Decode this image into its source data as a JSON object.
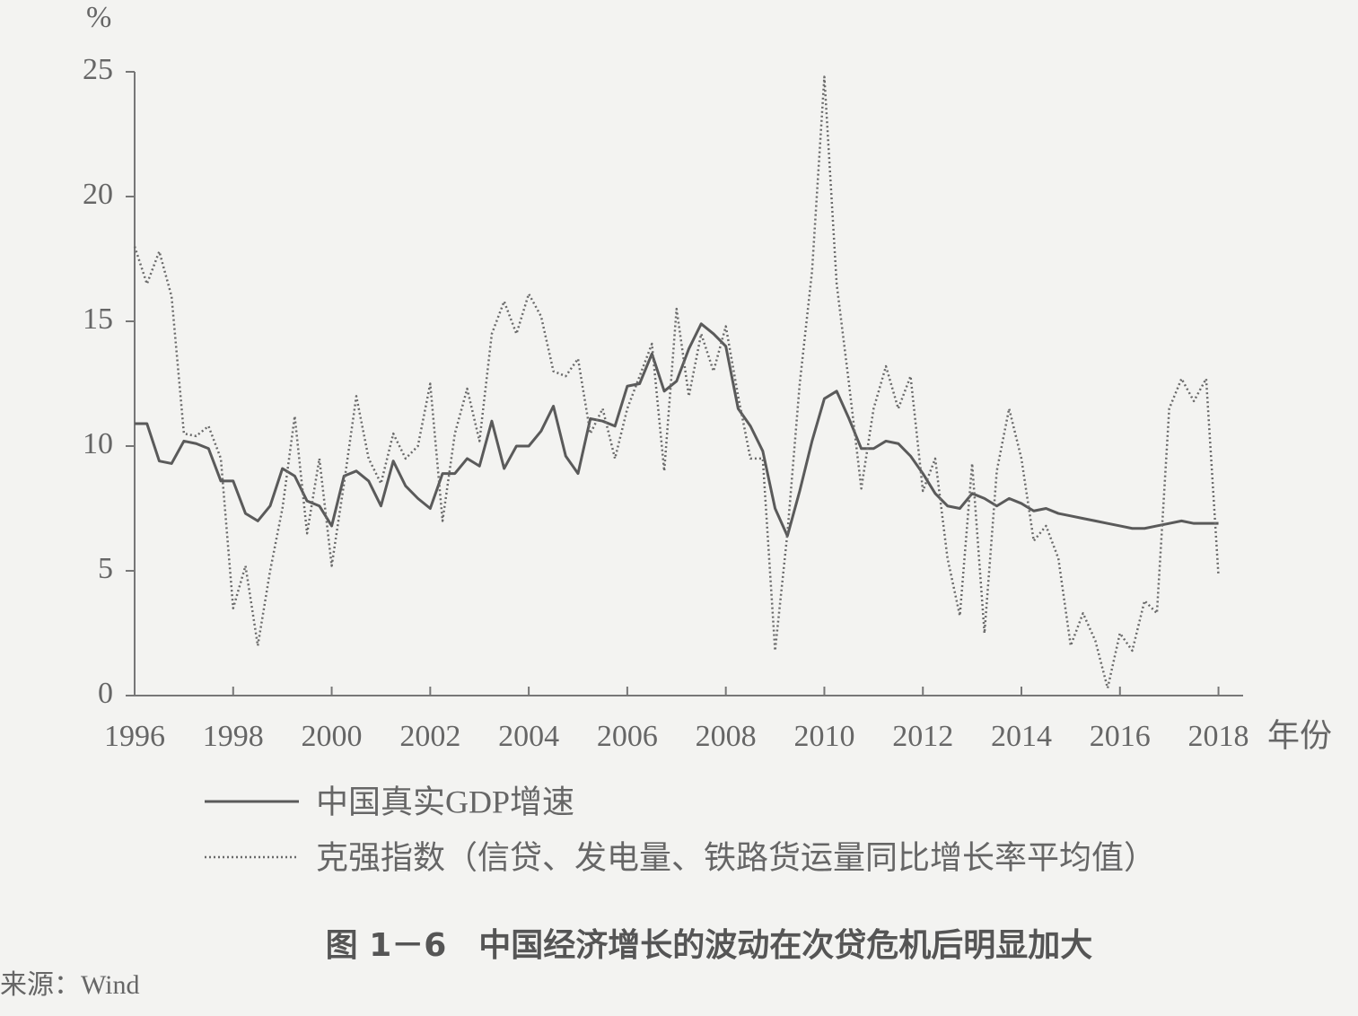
{
  "chart_data": {
    "type": "line",
    "y_unit": "%",
    "x_label": "年份",
    "caption": "图 1－6　中国经济增长的波动在次贷危机后明显加大",
    "source": "来源：Wind",
    "xlim": [
      1996,
      2018.5
    ],
    "ylim": [
      0,
      25
    ],
    "xticks": [
      1996,
      1998,
      2000,
      2002,
      2004,
      2006,
      2008,
      2010,
      2012,
      2014,
      2016,
      2018
    ],
    "yticks": [
      0,
      5,
      10,
      15,
      20,
      25
    ],
    "grid": false,
    "x": [
      1996,
      1996.25,
      1996.5,
      1996.75,
      1997,
      1997.25,
      1997.5,
      1997.75,
      1998,
      1998.25,
      1998.5,
      1998.75,
      1999,
      1999.25,
      1999.5,
      1999.75,
      2000,
      2000.25,
      2000.5,
      2000.75,
      2001,
      2001.25,
      2001.5,
      2001.75,
      2002,
      2002.25,
      2002.5,
      2002.75,
      2003,
      2003.25,
      2003.5,
      2003.75,
      2004,
      2004.25,
      2004.5,
      2004.75,
      2005,
      2005.25,
      2005.5,
      2005.75,
      2006,
      2006.25,
      2006.5,
      2006.75,
      2007,
      2007.25,
      2007.5,
      2007.75,
      2008,
      2008.25,
      2008.5,
      2008.75,
      2009,
      2009.25,
      2009.5,
      2009.75,
      2010,
      2010.25,
      2010.5,
      2010.75,
      2011,
      2011.25,
      2011.5,
      2011.75,
      2012,
      2012.25,
      2012.5,
      2012.75,
      2013,
      2013.25,
      2013.5,
      2013.75,
      2014,
      2014.25,
      2014.5,
      2014.75,
      2015,
      2015.25,
      2015.5,
      2015.75,
      2016,
      2016.25,
      2016.5,
      2016.75,
      2017,
      2017.25,
      2017.5,
      2017.75,
      2018
    ],
    "series": [
      {
        "name": "中国真实GDP增速",
        "color": "#5a5a5a",
        "style": "solid",
        "values": [
          10.9,
          10.9,
          9.4,
          9.3,
          10.2,
          10.1,
          9.9,
          8.6,
          8.6,
          7.3,
          7.0,
          7.6,
          9.1,
          8.8,
          7.8,
          7.6,
          6.8,
          8.8,
          9.0,
          8.6,
          7.6,
          9.4,
          8.4,
          7.9,
          7.5,
          8.9,
          8.9,
          9.5,
          9.2,
          11.0,
          9.1,
          10.0,
          10.0,
          10.6,
          11.6,
          9.6,
          8.9,
          11.1,
          11.0,
          10.8,
          12.4,
          12.5,
          13.7,
          12.2,
          12.6,
          13.9,
          14.9,
          14.5,
          14.0,
          11.5,
          10.8,
          9.8,
          7.5,
          6.4,
          8.2,
          10.2,
          11.9,
          12.2,
          11.1,
          9.9,
          9.9,
          10.2,
          10.1,
          9.6,
          8.9,
          8.1,
          7.6,
          7.5,
          8.1,
          7.9,
          7.6,
          7.9,
          7.7,
          7.4,
          7.5,
          7.3,
          7.2,
          7.1,
          7.0,
          6.9,
          6.8,
          6.7,
          6.7,
          6.8,
          6.9,
          7.0,
          6.9,
          6.9,
          6.9
        ]
      },
      {
        "name": "克强指数（信贷、发电量、铁路货运量同比增长率平均值）",
        "color": "#6a6a6a",
        "style": "dotted",
        "values": [
          18.0,
          16.5,
          17.8,
          16.0,
          10.5,
          10.4,
          10.8,
          9.5,
          3.5,
          5.2,
          2.0,
          5.0,
          7.5,
          11.2,
          6.5,
          9.5,
          5.2,
          8.5,
          12.0,
          9.5,
          8.5,
          10.5,
          9.5,
          10.0,
          12.5,
          7.0,
          10.5,
          12.3,
          10.2,
          14.5,
          15.8,
          14.5,
          16.1,
          15.2,
          13.0,
          12.8,
          13.5,
          10.5,
          11.5,
          9.5,
          11.5,
          12.8,
          14.1,
          9.0,
          15.5,
          12.0,
          14.5,
          13.0,
          14.8,
          12.0,
          9.5,
          9.5,
          1.8,
          6.5,
          12.5,
          17.0,
          24.8,
          16.5,
          12.5,
          8.3,
          11.5,
          13.2,
          11.5,
          12.8,
          8.2,
          9.5,
          5.5,
          3.2,
          9.3,
          2.5,
          9.0,
          11.5,
          9.5,
          6.2,
          6.8,
          5.5,
          2.0,
          3.3,
          2.2,
          0.3,
          2.5,
          1.8,
          3.8,
          3.3,
          11.5,
          12.7,
          11.8,
          12.7,
          4.8
        ]
      }
    ]
  }
}
